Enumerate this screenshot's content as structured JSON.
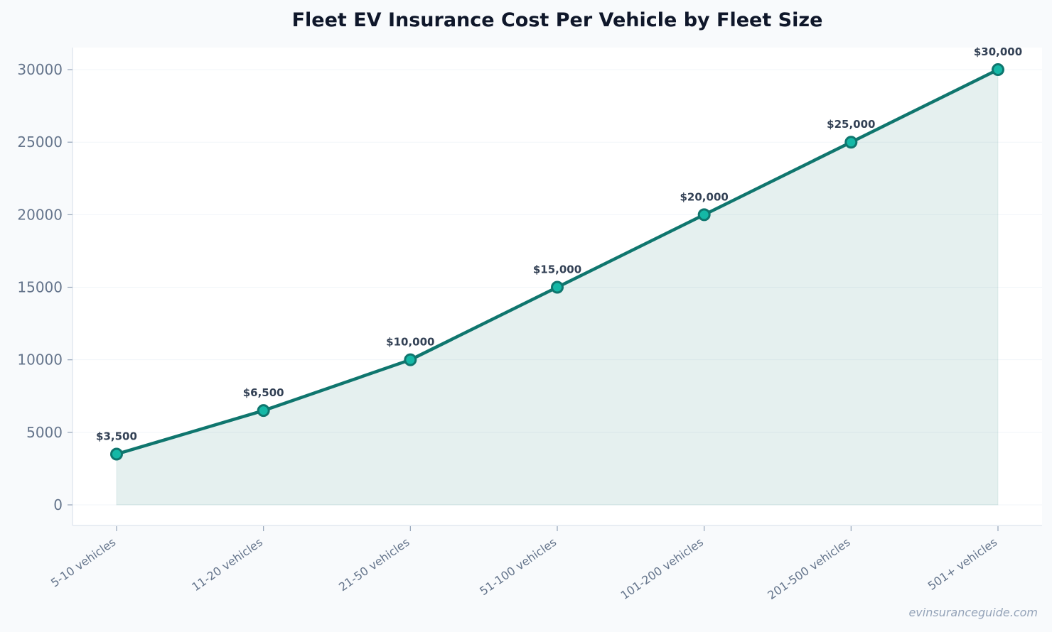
{
  "chart_data": {
    "type": "area",
    "title": "Fleet EV Insurance Cost Per Vehicle by Fleet Size",
    "xlabel": "",
    "ylabel": "",
    "categories": [
      "5-10 vehicles",
      "11-20 vehicles",
      "21-50 vehicles",
      "51-100 vehicles",
      "101-200 vehicles",
      "201-500 vehicles",
      "501+ vehicles"
    ],
    "values": [
      3500,
      6500,
      10000,
      15000,
      20000,
      25000,
      30000
    ],
    "data_labels": [
      "$3,500",
      "$6,500",
      "$10,000",
      "$15,000",
      "$20,000",
      "$25,000",
      "$30,000"
    ],
    "yticks": [
      0,
      5000,
      10000,
      15000,
      20000,
      25000,
      30000
    ],
    "ylim": [
      -1420,
      31520
    ],
    "grid": true,
    "legend": "none",
    "colors": {
      "line": "#0f766e",
      "marker": "#14b8a6",
      "fill": "#0f766e",
      "background": "#f8fafc",
      "plot": "#ffffff"
    }
  },
  "watermark": "evinsuranceguide.com"
}
